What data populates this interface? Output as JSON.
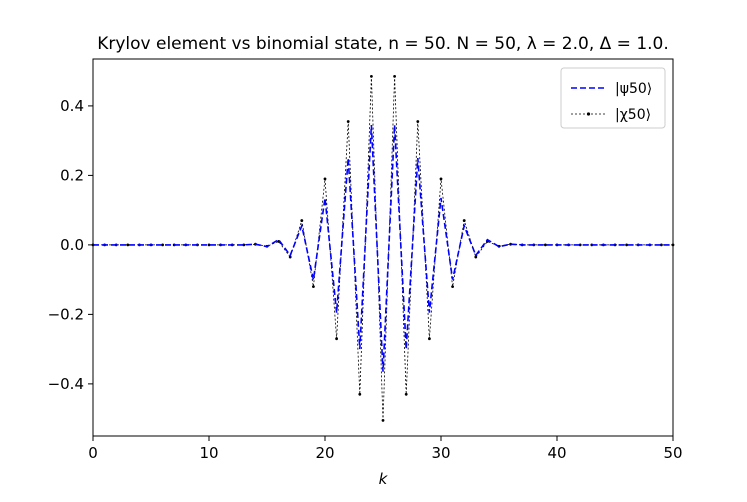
{
  "chart_data": {
    "type": "line",
    "title": "Krylov element vs binomial state, n = 50. N = 50, λ = 2.0, Δ = 1.0.",
    "xlabel": "k",
    "ylabel": "",
    "xlim": [
      0,
      50
    ],
    "ylim": [
      -0.55,
      0.535
    ],
    "xticks": [
      0,
      10,
      20,
      30,
      40,
      50
    ],
    "yticks": [
      -0.4,
      -0.2,
      0.0,
      0.2,
      0.4
    ],
    "xtick_labels": [
      "0",
      "10",
      "20",
      "30",
      "40",
      "50"
    ],
    "ytick_labels": [
      "−0.4",
      "−0.2",
      "0.0",
      "0.2",
      "0.4"
    ],
    "grid": false,
    "legend_position": "upper right",
    "x": [
      0,
      1,
      2,
      3,
      4,
      5,
      6,
      7,
      8,
      9,
      10,
      11,
      12,
      13,
      14,
      15,
      16,
      17,
      18,
      19,
      20,
      21,
      22,
      23,
      24,
      25,
      26,
      27,
      28,
      29,
      30,
      31,
      32,
      33,
      34,
      35,
      36,
      37,
      38,
      39,
      40,
      41,
      42,
      43,
      44,
      45,
      46,
      47,
      48,
      49,
      50
    ],
    "series": [
      {
        "name": "|ψ50⟩",
        "style": "dashed",
        "color": "#0000ff",
        "values": [
          0,
          0,
          0,
          0,
          0,
          0,
          0,
          0,
          0,
          0,
          0,
          0,
          0,
          0,
          0.002,
          -0.005,
          0.015,
          -0.03,
          0.055,
          -0.1,
          0.135,
          -0.195,
          0.25,
          -0.3,
          0.345,
          -0.365,
          0.345,
          -0.3,
          0.25,
          -0.195,
          0.135,
          -0.1,
          0.055,
          -0.03,
          0.015,
          -0.005,
          0.002,
          0,
          0,
          0,
          0,
          0,
          0,
          0,
          0,
          0,
          0,
          0,
          0,
          0,
          0
        ]
      },
      {
        "name": "|χ50⟩",
        "style": "dotted-marker",
        "color": "#000000",
        "values": [
          0,
          0,
          0,
          0,
          0,
          0,
          0,
          0,
          0,
          0,
          0,
          0,
          0,
          0,
          0.002,
          -0.004,
          0.01,
          -0.035,
          0.07,
          -0.12,
          0.19,
          -0.27,
          0.355,
          -0.43,
          0.485,
          -0.505,
          0.485,
          -0.43,
          0.355,
          -0.27,
          0.19,
          -0.12,
          0.07,
          -0.035,
          0.01,
          -0.004,
          0.002,
          0,
          0,
          0,
          0,
          0,
          0,
          0,
          0,
          0,
          0,
          0,
          0,
          0,
          0
        ]
      }
    ],
    "legend": [
      {
        "label": "|ψ50⟩",
        "color": "#0000ff",
        "style": "dashed"
      },
      {
        "label": "|χ50⟩",
        "color": "#000000",
        "style": "dotted-marker"
      }
    ]
  }
}
